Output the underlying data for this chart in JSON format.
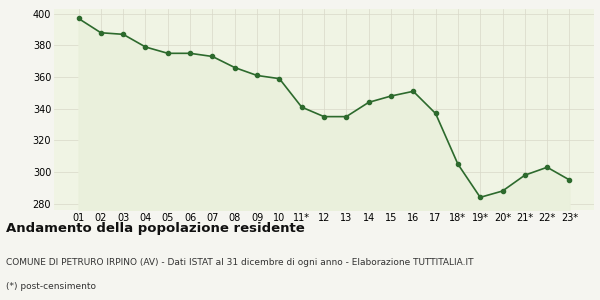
{
  "x_labels": [
    "01",
    "02",
    "03",
    "04",
    "05",
    "06",
    "07",
    "08",
    "09",
    "10",
    "11*",
    "12",
    "13",
    "14",
    "15",
    "16",
    "17",
    "18*",
    "19*",
    "20*",
    "21*",
    "22*",
    "23*"
  ],
  "y_values": [
    397,
    388,
    387,
    379,
    375,
    375,
    373,
    366,
    361,
    359,
    341,
    335,
    335,
    344,
    348,
    351,
    337,
    305,
    284,
    288,
    298,
    303,
    295
  ],
  "line_color": "#2d6a2d",
  "fill_color": "#eaf0dc",
  "marker": "o",
  "markersize": 3.0,
  "linewidth": 1.2,
  "ylim": [
    276,
    403
  ],
  "yticks": [
    280,
    300,
    320,
    340,
    360,
    380,
    400
  ],
  "title": "Andamento della popolazione residente",
  "subtitle": "COMUNE DI PETRURO IRPINO (AV) - Dati ISTAT al 31 dicembre di ogni anno - Elaborazione TUTTITALIA.IT",
  "footnote": "(*) post-censimento",
  "plot_bg_color": "#f0f4e4",
  "fig_bg_color": "#f5f5f0",
  "grid_color": "#d8d8c8",
  "title_fontsize": 9.5,
  "subtitle_fontsize": 6.5,
  "footnote_fontsize": 6.5,
  "tick_fontsize": 7.0
}
